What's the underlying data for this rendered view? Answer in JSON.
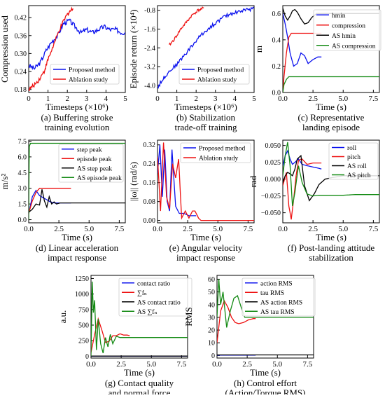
{
  "colors": {
    "blue": "#0b12ee",
    "red": "#ee1111",
    "black": "#000000",
    "green": "#138a13"
  },
  "chart_data": [
    {
      "id": "a",
      "type": "line",
      "caption": [
        "(a) Buffering stroke",
        "training evolution"
      ],
      "xlabel": "Timesteps (×10⁶)",
      "ylabel": "Compression used",
      "xlim": [
        0,
        5
      ],
      "ylim": [
        0.17,
        0.46
      ],
      "xticks": [
        0,
        1,
        2,
        3,
        4,
        5
      ],
      "yticks": [
        0.18,
        0.24,
        0.3,
        0.36,
        0.42
      ],
      "legend": "lower-right",
      "series": [
        {
          "name": "Proposed method",
          "color": "blue",
          "noise": 0.008,
          "x": [
            0,
            0.3,
            0.6,
            0.9,
            1.2,
            1.5,
            1.8,
            2.1,
            2.4,
            2.7,
            3.0,
            3.3,
            3.6,
            3.9,
            4.2,
            4.5,
            4.8,
            5.0
          ],
          "y": [
            0.26,
            0.25,
            0.27,
            0.31,
            0.34,
            0.36,
            0.4,
            0.41,
            0.39,
            0.37,
            0.38,
            0.37,
            0.38,
            0.39,
            0.38,
            0.38,
            0.37,
            0.37
          ]
        },
        {
          "name": "Ablation study",
          "color": "red",
          "noise": 0.007,
          "x": [
            0,
            0.2,
            0.5,
            0.8,
            1.0,
            1.3,
            1.6,
            1.9,
            2.1,
            2.3
          ],
          "y": [
            0.18,
            0.19,
            0.21,
            0.24,
            0.28,
            0.33,
            0.38,
            0.42,
            0.44,
            0.45
          ]
        }
      ]
    },
    {
      "id": "b",
      "type": "line",
      "caption": [
        "(b) Stabilization",
        "trade-off training"
      ],
      "xlabel": "Timesteps (×10⁶)",
      "ylabel": "Episode return (×10⁴)",
      "xlim": [
        0,
        5
      ],
      "ylim": [
        -4.3,
        -0.6
      ],
      "xticks": [
        0,
        1,
        2,
        3,
        4,
        5
      ],
      "yticks": [
        -0.8,
        -1.6,
        -2.4,
        -3.2,
        -4.0
      ],
      "legend": "lower-right",
      "series": [
        {
          "name": "Proposed method",
          "color": "blue",
          "noise": 0.08,
          "x": [
            0,
            0.3,
            0.6,
            1.0,
            1.4,
            1.8,
            2.2,
            2.6,
            3.0,
            3.4,
            3.8,
            4.2,
            4.6,
            5.0
          ],
          "y": [
            -4.1,
            -3.7,
            -3.4,
            -3.1,
            -2.7,
            -2.3,
            -1.9,
            -1.6,
            -1.35,
            -1.1,
            -0.95,
            -0.85,
            -0.78,
            -0.72
          ]
        },
        {
          "name": "Ablation study",
          "color": "red",
          "noise": 0.06,
          "x": [
            0.6,
            0.9,
            1.2,
            1.5,
            1.8,
            2.1,
            2.4
          ],
          "y": [
            -2.3,
            -2.0,
            -1.6,
            -1.3,
            -1.0,
            -0.8,
            -0.7
          ]
        }
      ]
    },
    {
      "id": "c",
      "type": "line",
      "caption": [
        "(c) Representative",
        "landing episode"
      ],
      "xlabel": "Time (s)",
      "ylabel": "m",
      "xlim": [
        0,
        8
      ],
      "ylim": [
        0,
        0.66
      ],
      "xticks": [
        0.0,
        2.5,
        5.0,
        7.5
      ],
      "xticklabels": [
        "0.0",
        "2.5",
        "5.0",
        "7.5"
      ],
      "yticks": [
        0.0,
        0.2,
        0.4,
        0.6
      ],
      "legend": "upper-right",
      "series": [
        {
          "name": "hmin",
          "color": "blue",
          "x": [
            0,
            0.2,
            0.4,
            0.6,
            0.9,
            1.2,
            1.5,
            1.8,
            2.1,
            2.5,
            2.9,
            3.2
          ],
          "y": [
            0.6,
            0.52,
            0.42,
            0.3,
            0.2,
            0.22,
            0.3,
            0.28,
            0.22,
            0.25,
            0.27,
            0.27
          ]
        },
        {
          "name": "compression",
          "color": "red",
          "x": [
            0,
            0.1,
            0.3,
            0.5,
            0.7,
            0.9,
            1.1,
            1.5,
            2.0,
            2.5,
            3.0,
            3.2
          ],
          "y": [
            0.0,
            0.12,
            0.3,
            0.42,
            0.45,
            0.45,
            0.45,
            0.45,
            0.45,
            0.45,
            0.45,
            0.45
          ]
        },
        {
          "name": "AS hmin",
          "color": "black",
          "x": [
            0,
            0.2,
            0.4,
            0.6,
            0.8,
            1.0,
            1.2,
            1.5,
            1.8,
            2.1,
            2.4,
            2.8,
            3.2,
            4.0,
            5.0,
            6.0,
            7.0,
            8.0
          ],
          "y": [
            0.64,
            0.58,
            0.55,
            0.58,
            0.62,
            0.63,
            0.61,
            0.56,
            0.52,
            0.53,
            0.57,
            0.6,
            0.6,
            0.6,
            0.6,
            0.6,
            0.6,
            0.6
          ]
        },
        {
          "name": "AS compression",
          "color": "green",
          "x": [
            0,
            0.1,
            0.3,
            0.5,
            0.8,
            1.0,
            8.0
          ],
          "y": [
            0.0,
            0.06,
            0.1,
            0.12,
            0.12,
            0.12,
            0.12
          ]
        }
      ]
    },
    {
      "id": "d",
      "type": "line",
      "caption": [
        "(d) Linear acceleration",
        "impact response"
      ],
      "xlabel": "Time (s)",
      "ylabel": "m/s²",
      "xlim": [
        0,
        8
      ],
      "ylim": [
        -0.3,
        7.6
      ],
      "xticks": [
        0.0,
        2.5,
        5.0,
        7.5
      ],
      "xticklabels": [
        "0.0",
        "2.5",
        "5.0",
        "7.5"
      ],
      "yticks": [
        0.0,
        1.5,
        3.0,
        4.5,
        6.0,
        7.5
      ],
      "legend": "right",
      "series": [
        {
          "name": "step peak",
          "color": "blue",
          "x": [
            0,
            0.3,
            0.6,
            0.9,
            1.2,
            1.5,
            1.8,
            2.1,
            2.4,
            3.0,
            3.5
          ],
          "y": [
            0.6,
            2.2,
            2.8,
            2.3,
            2.1,
            1.9,
            1.7,
            1.6,
            1.6,
            1.6,
            1.6
          ]
        },
        {
          "name": "episode peak",
          "color": "red",
          "x": [
            0,
            0.3,
            0.6,
            0.9,
            1.0,
            1.5,
            2.0,
            2.5,
            3.0,
            3.5
          ],
          "y": [
            0.6,
            1.8,
            2.6,
            3.0,
            3.0,
            3.0,
            3.0,
            3.0,
            3.0,
            3.0
          ]
        },
        {
          "name": "AS step peak",
          "color": "black",
          "x": [
            0,
            0.3,
            0.6,
            0.9,
            1.1,
            1.3,
            1.5,
            1.7,
            1.9,
            2.1,
            2.3,
            2.6,
            3.0,
            4.0,
            5.0,
            6.0,
            7.0,
            8.0
          ],
          "y": [
            0.7,
            1.0,
            1.5,
            1.4,
            2.9,
            1.8,
            1.2,
            2.2,
            1.5,
            1.7,
            1.5,
            1.6,
            1.6,
            1.6,
            1.6,
            1.6,
            1.6,
            1.6
          ]
        },
        {
          "name": "AS episode peak",
          "color": "green",
          "x": [
            0,
            0.05,
            0.15,
            0.5,
            1.0,
            2.0,
            4.0,
            6.0,
            8.0
          ],
          "y": [
            0.0,
            7.0,
            7.3,
            7.3,
            7.3,
            7.3,
            7.3,
            7.3,
            7.3
          ]
        }
      ]
    },
    {
      "id": "e",
      "type": "line",
      "caption": [
        "(e) Angular velocity",
        "impact response"
      ],
      "xlabel": "Time (s)",
      "ylabel": "||ω|| (rad/s)",
      "xlim": [
        0,
        8
      ],
      "ylim": [
        -0.01,
        0.34
      ],
      "xticks": [
        0.0,
        2.5,
        5.0,
        7.5
      ],
      "xticklabels": [
        "0.0",
        "2.5",
        "5.0",
        "7.5"
      ],
      "yticks": [
        0.0,
        0.08,
        0.16,
        0.24,
        0.32
      ],
      "legend": "upper-right",
      "series": [
        {
          "name": "Proposed method",
          "color": "blue",
          "x": [
            0,
            0.2,
            0.4,
            0.6,
            0.8,
            1.0,
            1.2,
            1.5,
            1.8,
            2.2,
            2.6,
            3.0,
            3.2
          ],
          "y": [
            0.2,
            0.32,
            0.1,
            0.3,
            0.08,
            0.04,
            0.3,
            0.06,
            0.03,
            0.03,
            0.02,
            0.02,
            0.02
          ]
        },
        {
          "name": "Ablation study",
          "color": "red",
          "x": [
            0,
            0.25,
            0.5,
            0.75,
            1.0,
            1.25,
            1.5,
            1.75,
            2.0,
            2.3,
            2.6,
            2.9,
            3.1,
            3.4,
            3.6,
            4.0,
            8.0
          ],
          "y": [
            0.27,
            0.04,
            0.33,
            0.1,
            0.05,
            0.24,
            0.18,
            0.26,
            0.01,
            0.04,
            0.01,
            0.04,
            0.04,
            0.01,
            0.0,
            0.0,
            0.0
          ]
        }
      ]
    },
    {
      "id": "f",
      "type": "line",
      "caption": [
        "(f) Post-landing attitude",
        "stabilization"
      ],
      "xlabel": "Time (s)",
      "ylabel": "rad",
      "xlim": [
        0,
        8
      ],
      "ylim": [
        -0.065,
        0.058
      ],
      "xticks": [
        0.0,
        2.5,
        5.0,
        7.5
      ],
      "xticklabels": [
        "0.0",
        "2.5",
        "5.0",
        "7.5"
      ],
      "yticks": [
        -0.05,
        -0.025,
        0.0,
        0.025,
        0.05
      ],
      "yticklabels": [
        "−0.050",
        "−0.025",
        "0.000",
        "0.025",
        "0.050"
      ],
      "legend": "upper-right",
      "series": [
        {
          "name": "roll",
          "color": "blue",
          "x": [
            0,
            0.2,
            0.4,
            0.6,
            0.8,
            1.0,
            1.3,
            1.6,
            2.0,
            2.5,
            3.0,
            3.2
          ],
          "y": [
            0.02,
            0.035,
            0.042,
            0.03,
            0.022,
            0.025,
            0.03,
            0.022,
            0.02,
            0.018,
            0.016,
            0.015
          ]
        },
        {
          "name": "pitch",
          "color": "red",
          "x": [
            0,
            0.15,
            0.3,
            0.5,
            0.7,
            0.9,
            1.1,
            1.3,
            1.6,
            2.0,
            2.5,
            3.0,
            3.2
          ],
          "y": [
            -0.01,
            0.0,
            0.01,
            -0.04,
            -0.06,
            -0.03,
            0.005,
            0.028,
            0.03,
            0.022,
            0.024,
            0.024,
            0.024
          ]
        },
        {
          "name": "AS roll",
          "color": "black",
          "x": [
            0,
            0.2,
            0.4,
            0.6,
            0.8,
            1.0,
            1.2,
            1.5,
            1.8,
            2.2,
            2.6,
            3.0,
            3.5,
            4.0,
            5.0,
            6.0,
            7.0,
            8.0
          ],
          "y": [
            -0.005,
            0.005,
            0.01,
            0.008,
            0.005,
            0.015,
            0.03,
            0.035,
            -0.01,
            -0.032,
            -0.022,
            -0.008,
            0.0,
            0.002,
            0.005,
            0.005,
            0.005,
            0.005
          ]
        },
        {
          "name": "AS pitch",
          "color": "green",
          "x": [
            0,
            0.2,
            0.4,
            0.6,
            0.8,
            1.0,
            1.3,
            1.6,
            2.0,
            2.5,
            3.0,
            4.0,
            5.0,
            6.0,
            7.0,
            8.0
          ],
          "y": [
            0.005,
            0.035,
            0.055,
            0.02,
            -0.04,
            -0.02,
            0.02,
            -0.005,
            -0.022,
            -0.025,
            -0.024,
            -0.024,
            -0.024,
            -0.023,
            -0.023,
            -0.023
          ]
        }
      ]
    },
    {
      "id": "g",
      "type": "line",
      "caption": [
        "(g) Contact quality",
        "and normal force"
      ],
      "xlabel": "Time (s)",
      "ylabel": "a.u.",
      "xlim": [
        0,
        8
      ],
      "ylim": [
        -30,
        1300
      ],
      "xticks": [
        0.0,
        2.5,
        5.0,
        7.5
      ],
      "xticklabels": [
        "0.0",
        "2.5",
        "5.0",
        "7.5"
      ],
      "yticks": [
        0,
        250,
        500,
        750,
        1000,
        1250
      ],
      "legend": "upper-right",
      "series": [
        {
          "name": "contact ratio",
          "color": "blue",
          "x": [
            0,
            8
          ],
          "y": [
            0.5,
            0.5
          ]
        },
        {
          "name": "∑fₙ",
          "color": "red",
          "x": [
            0,
            0.3,
            0.6,
            0.9,
            1.2,
            1.5,
            1.8,
            2.1,
            2.4,
            2.7,
            3.0,
            3.2
          ],
          "y": [
            60,
            350,
            600,
            420,
            220,
            240,
            330,
            330,
            360,
            340,
            340,
            330
          ]
        },
        {
          "name": "AS contact ratio",
          "color": "black",
          "x": [
            0,
            8
          ],
          "y": [
            1,
            1
          ]
        },
        {
          "name": "AS ∑fₙ",
          "color": "green",
          "x": [
            0,
            0.1,
            0.2,
            0.3,
            0.45,
            0.6,
            0.8,
            1.0,
            1.2,
            1.4,
            1.6,
            1.8,
            2.1,
            2.4,
            3.0,
            4.0,
            6.0,
            8.0
          ],
          "y": [
            0,
            1200,
            700,
            900,
            100,
            600,
            200,
            50,
            300,
            150,
            350,
            200,
            320,
            300,
            300,
            300,
            300,
            300
          ]
        }
      ]
    },
    {
      "id": "h",
      "type": "line",
      "caption": [
        "(h) Control effort",
        "(Action/Torque RMS)"
      ],
      "xlabel": "Time (s)",
      "ylabel": "RMS",
      "xlim": [
        0,
        8
      ],
      "ylim": [
        -2,
        63
      ],
      "xticks": [
        0.0,
        2.5,
        5.0,
        7.5
      ],
      "xticklabels": [
        "0.0",
        "2.5",
        "5.0",
        "7.5"
      ],
      "yticks": [
        0,
        10,
        20,
        30,
        40,
        50,
        60
      ],
      "legend": "upper-right",
      "series": [
        {
          "name": "action RMS",
          "color": "blue",
          "x": [
            0,
            3.2
          ],
          "y": [
            0.3,
            0.3
          ]
        },
        {
          "name": "tau RMS",
          "color": "red",
          "x": [
            0,
            0.3,
            0.6,
            0.9,
            1.2,
            1.5,
            1.8,
            2.2,
            2.6,
            3.0,
            3.2
          ],
          "y": [
            10,
            35,
            43,
            38,
            30,
            26,
            25,
            26,
            28,
            29,
            29
          ]
        },
        {
          "name": "AS action RMS",
          "color": "black",
          "x": [
            0,
            8
          ],
          "y": [
            0.5,
            0.5
          ]
        },
        {
          "name": "AS tau RMS",
          "color": "green",
          "x": [
            0,
            0.15,
            0.3,
            0.5,
            0.8,
            1.1,
            1.4,
            1.7,
            2.0,
            2.3,
            2.6,
            3.0,
            4.0,
            6.0,
            8.0
          ],
          "y": [
            30,
            60,
            40,
            50,
            22,
            35,
            45,
            47,
            38,
            30,
            30,
            30,
            30,
            30,
            30
          ]
        }
      ]
    }
  ]
}
